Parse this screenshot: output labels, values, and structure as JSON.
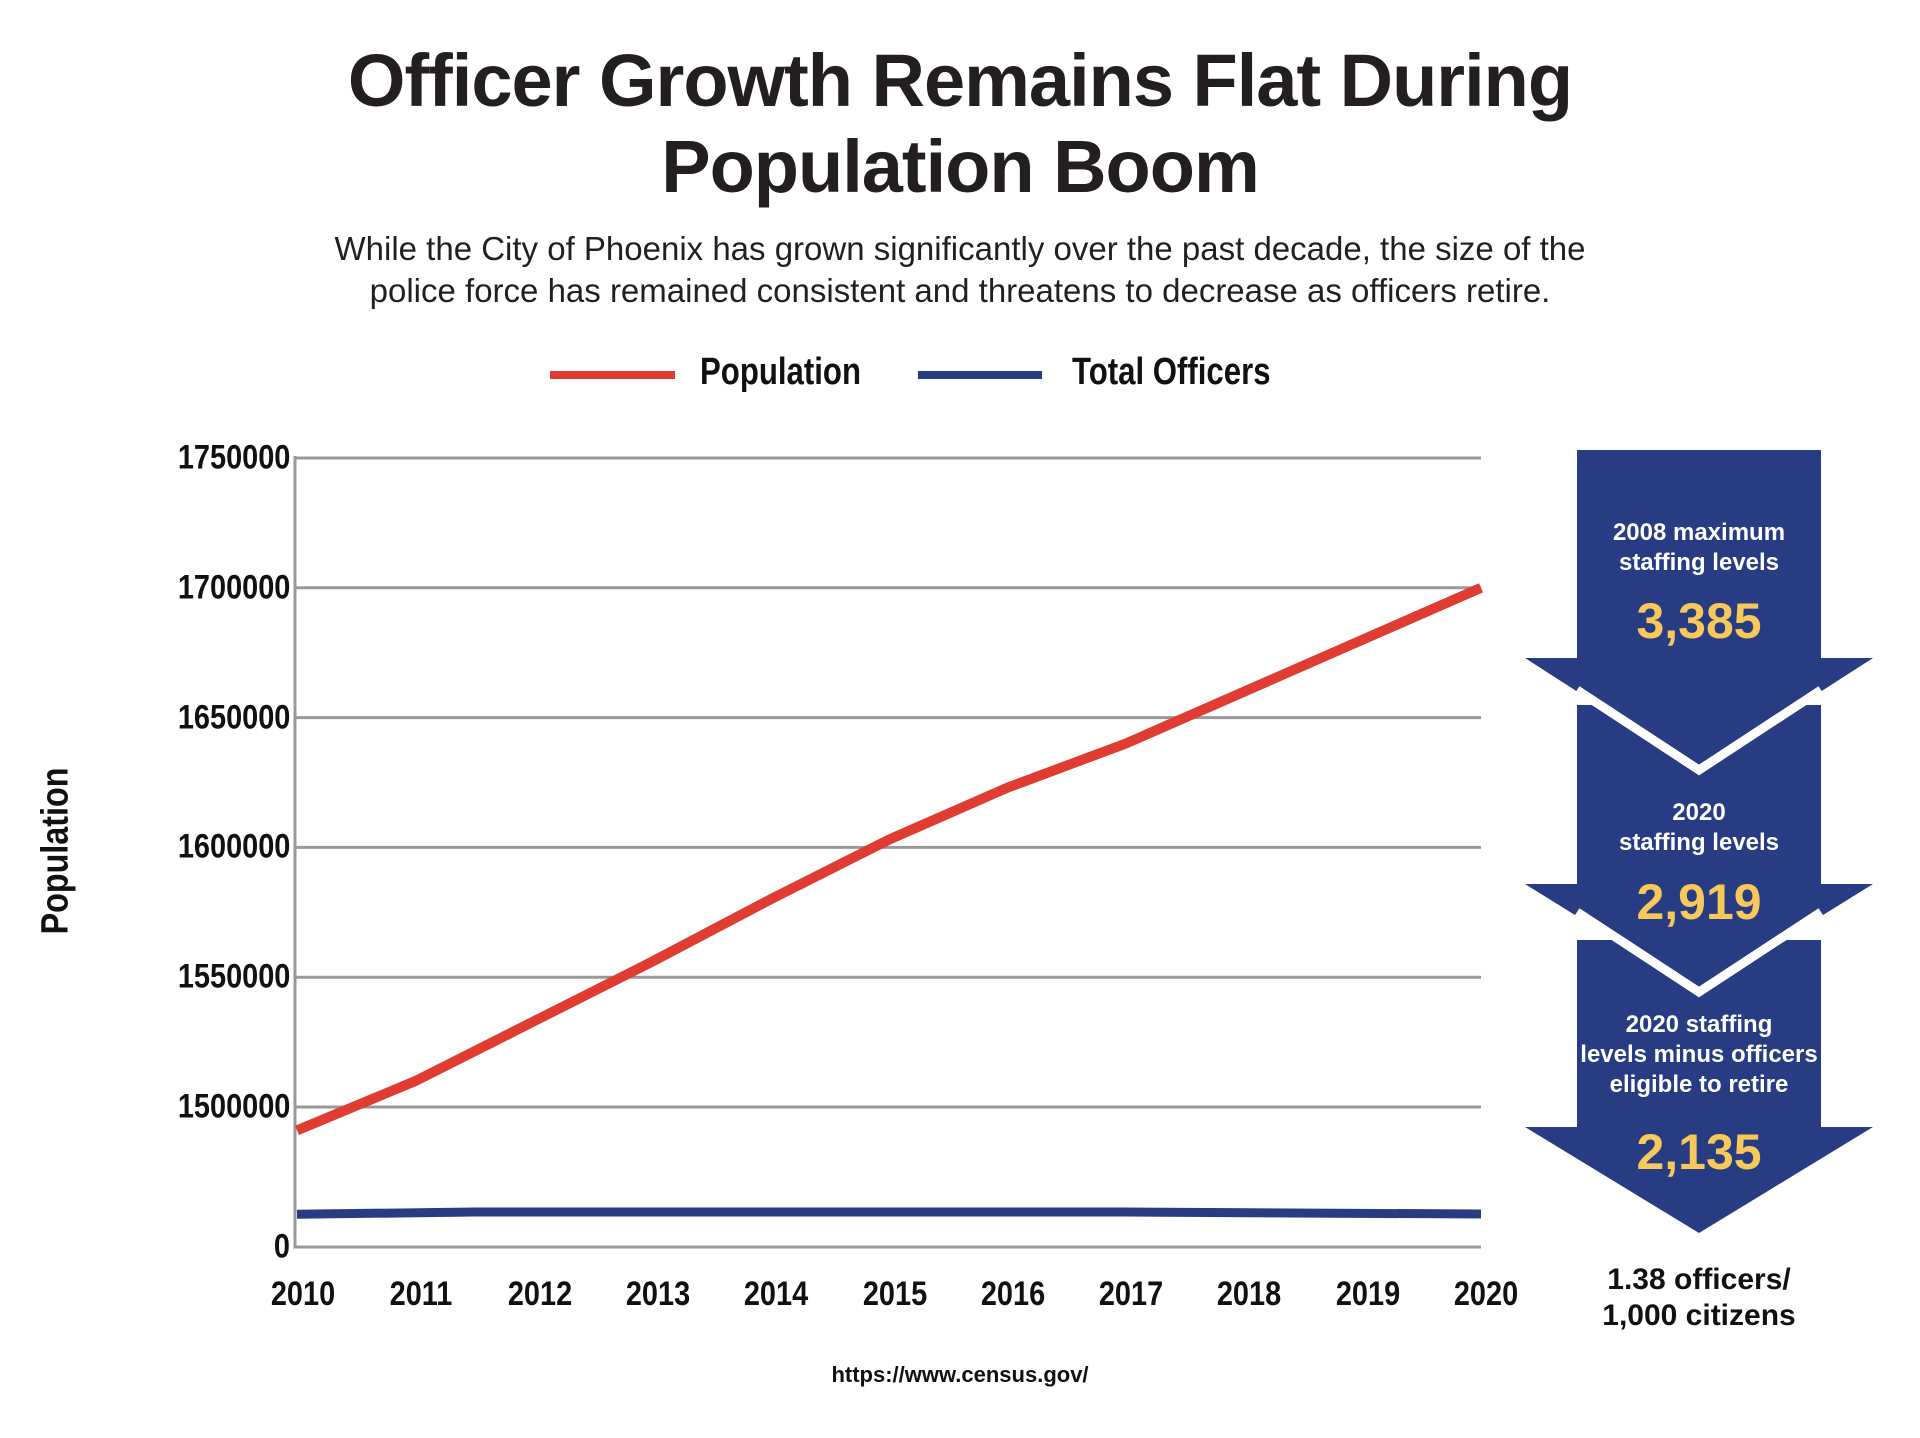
{
  "title_lines": [
    "Officer Growth Remains Flat During",
    "Population Boom"
  ],
  "subtitle_lines": [
    "While the City of Phoenix has grown significantly over the past decade, the size of the",
    "police force has remained consistent and threatens to decrease as officers retire."
  ],
  "colors": {
    "population": "#e03c31",
    "officers": "#283c84",
    "arrow": "#283c84",
    "highlight": "#f7c85a",
    "grid": "#999999"
  },
  "legend": [
    {
      "label": "Population",
      "color": "#e03c31"
    },
    {
      "label": "Total Officers",
      "color": "#283c84"
    }
  ],
  "source": "https://www.census.gov/",
  "callouts": [
    {
      "label_lines": [
        "2008 maximum",
        "staffing levels"
      ],
      "value": "3,385"
    },
    {
      "label_lines": [
        "2020",
        "staffing levels"
      ],
      "value": "2,919"
    },
    {
      "label_lines": [
        "2020 staffing",
        "levels minus officers",
        "eligible to retire"
      ],
      "value": "2,135"
    }
  ],
  "ratio_lines": [
    "1.38 officers/",
    "1,000 citizens"
  ],
  "chart_data": {
    "type": "line",
    "title": "Officer Growth Remains Flat During Population Boom",
    "xlabel": "",
    "ylabel": "Population",
    "x": [
      2010,
      2011,
      2012,
      2013,
      2014,
      2015,
      2016,
      2017,
      2018,
      2019,
      2020
    ],
    "x_tick_labels": [
      "2010",
      "2011",
      "2012",
      "2013",
      "2014",
      "2015",
      "2016",
      "2017",
      "2018",
      "2019",
      "2020"
    ],
    "y_tick_labels": [
      "1750000",
      "1700000",
      "1650000",
      "1600000",
      "1550000",
      "1500000",
      "0"
    ],
    "y_ticks": [
      1750000,
      1700000,
      1650000,
      1600000,
      1550000,
      1500000,
      0
    ],
    "axis_break": "between 0 and 1500000",
    "ylim": [
      1500000,
      1750000
    ],
    "grid": true,
    "legend_position": "top-center",
    "series": [
      {
        "name": "Population",
        "values": [
          1491000,
          1510000,
          1533000,
          1556000,
          1580000,
          1603000,
          1623000,
          1640000,
          1660000,
          1680000,
          1700000
        ]
      },
      {
        "name": "Total Officers",
        "note": "plotted near the axis floor; approximate officer counts",
        "x": [
          2010,
          2011.5,
          2017,
          2020
        ],
        "values": [
          2900,
          3100,
          3100,
          2919
        ]
      }
    ]
  }
}
